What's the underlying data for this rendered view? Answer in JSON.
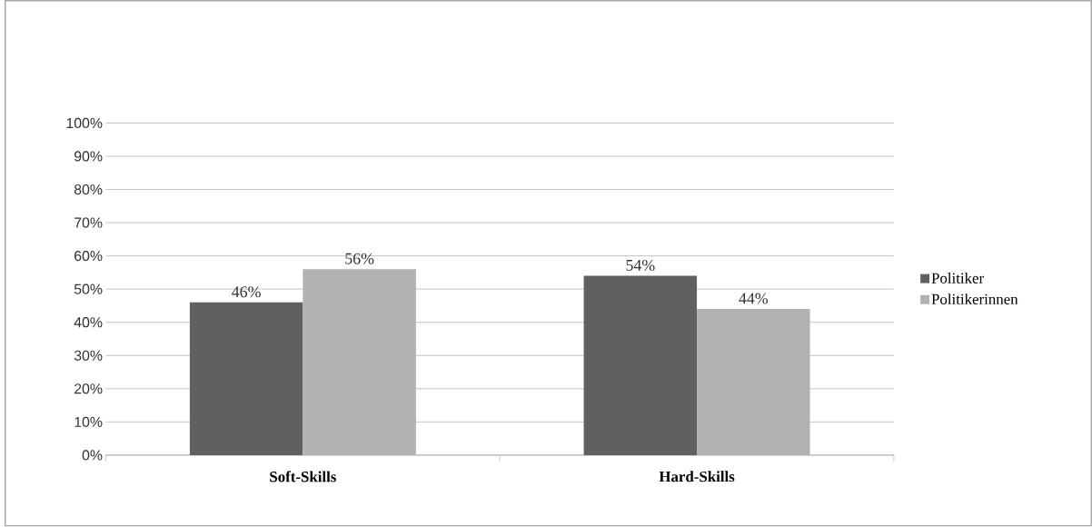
{
  "chart_data": {
    "type": "bar",
    "categories": [
      "Soft-Skills",
      "Hard-Skills"
    ],
    "series": [
      {
        "name": "Politiker",
        "color": "#606060",
        "values": [
          46,
          54
        ],
        "value_labels": [
          "46%",
          "54%"
        ]
      },
      {
        "name": "Politikerinnen",
        "color": "#b2b2b2",
        "values": [
          56,
          44
        ],
        "value_labels": [
          "56%",
          "44%"
        ]
      }
    ],
    "ylim": [
      0,
      100
    ],
    "yticks": [
      {
        "value": 0,
        "label": "0%"
      },
      {
        "value": 10,
        "label": "10%"
      },
      {
        "value": 20,
        "label": "20%"
      },
      {
        "value": 30,
        "label": "30%"
      },
      {
        "value": 40,
        "label": "40%"
      },
      {
        "value": 50,
        "label": "50%"
      },
      {
        "value": 60,
        "label": "60%"
      },
      {
        "value": 70,
        "label": "70%"
      },
      {
        "value": 80,
        "label": "80%"
      },
      {
        "value": 90,
        "label": "90%"
      },
      {
        "value": 100,
        "label": "100%"
      }
    ],
    "grid": "y",
    "legend": "right"
  }
}
